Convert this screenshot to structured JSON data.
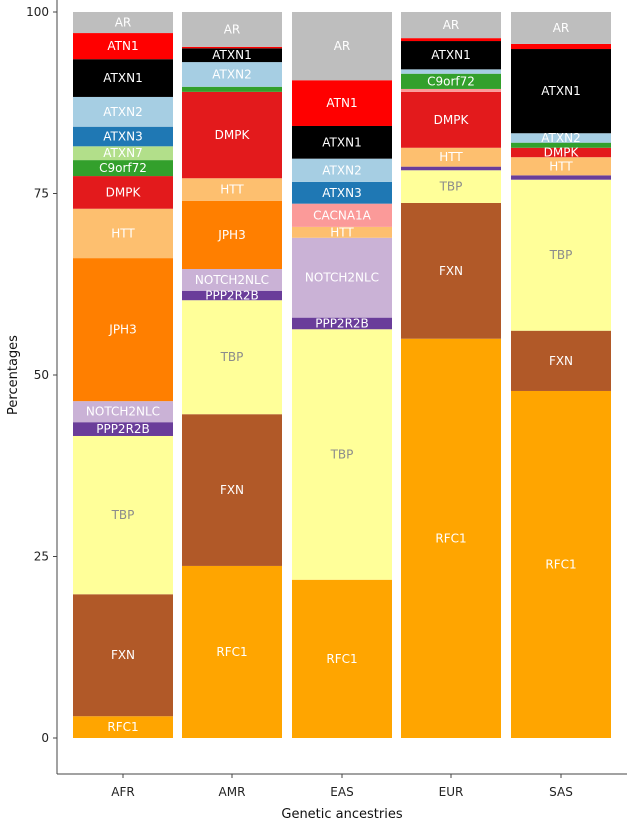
{
  "chart_data": {
    "type": "bar",
    "stacked": true,
    "title": "",
    "xlabel": "Genetic ancestries",
    "ylabel": "Percentages",
    "ylim": [
      0,
      100
    ],
    "yticks": [
      0,
      25,
      50,
      75,
      100
    ],
    "grid": false,
    "legend": "none (segments labeled inline)",
    "categories": [
      "AFR",
      "AMR",
      "EAS",
      "EUR",
      "SAS"
    ],
    "gene_colors": {
      "AR": "#bebebe",
      "ATN1": "#ff0000",
      "ATXN1": "#000000",
      "ATXN2": "#a6cee3",
      "ATXN3": "#1f78b4",
      "ATXN7": "#b2df8a",
      "C9orf72": "#33a02c",
      "CACNA1A": "#fb9a99",
      "DMPK": "#e31a1c",
      "HTT": "#fdbf6f",
      "JPH3": "#ff7f00",
      "NOTCH2NLC": "#cab2d6",
      "PPP2R2B": "#6a3d9a",
      "TBP": "#ffff99",
      "FXN": "#b15928",
      "RFC1": "#ffa500"
    },
    "label_colors": {
      "default": "#ffffff",
      "TBP": "#8c8c8c"
    },
    "bars": [
      {
        "category": "AFR",
        "segments": [
          {
            "gene": "RFC1",
            "value": 3.0,
            "labeled": true
          },
          {
            "gene": "FXN",
            "value": 16.8,
            "labeled": true
          },
          {
            "gene": "TBP",
            "value": 21.8,
            "labeled": true
          },
          {
            "gene": "PPP2R2B",
            "value": 1.9,
            "labeled": true
          },
          {
            "gene": "NOTCH2NLC",
            "value": 2.9,
            "labeled": true
          },
          {
            "gene": "JPH3",
            "value": 19.7,
            "labeled": true
          },
          {
            "gene": "HTT",
            "value": 6.8,
            "labeled": true
          },
          {
            "gene": "DMPK",
            "value": 4.5,
            "labeled": true
          },
          {
            "gene": "C9orf72",
            "value": 2.2,
            "labeled": true
          },
          {
            "gene": "ATXN7",
            "value": 1.9,
            "labeled": true
          },
          {
            "gene": "ATXN3",
            "value": 2.7,
            "labeled": true
          },
          {
            "gene": "ATXN2",
            "value": 4.1,
            "labeled": true
          },
          {
            "gene": "ATXN1",
            "value": 5.2,
            "labeled": true
          },
          {
            "gene": "ATN1",
            "value": 3.6,
            "labeled": true
          },
          {
            "gene": "AR",
            "value": 2.9,
            "labeled": true
          }
        ]
      },
      {
        "category": "AMR",
        "segments": [
          {
            "gene": "RFC1",
            "value": 23.7,
            "labeled": true
          },
          {
            "gene": "FXN",
            "value": 20.9,
            "labeled": true
          },
          {
            "gene": "TBP",
            "value": 15.7,
            "labeled": true
          },
          {
            "gene": "PPP2R2B",
            "value": 1.3,
            "labeled": true
          },
          {
            "gene": "NOTCH2NLC",
            "value": 3.0,
            "labeled": true
          },
          {
            "gene": "JPH3",
            "value": 9.4,
            "labeled": true
          },
          {
            "gene": "HTT",
            "value": 3.1,
            "labeled": true
          },
          {
            "gene": "DMPK",
            "value": 11.9,
            "labeled": true
          },
          {
            "gene": "C9orf72",
            "value": 0.7,
            "labeled": false
          },
          {
            "gene": "ATXN2",
            "value": 3.4,
            "labeled": true
          },
          {
            "gene": "ATXN1",
            "value": 1.9,
            "labeled": true
          },
          {
            "gene": "ATN1",
            "value": 0.2,
            "labeled": false
          },
          {
            "gene": "AR",
            "value": 4.8,
            "labeled": true
          }
        ]
      },
      {
        "category": "EAS",
        "segments": [
          {
            "gene": "RFC1",
            "value": 21.8,
            "labeled": true
          },
          {
            "gene": "TBP",
            "value": 34.5,
            "labeled": true
          },
          {
            "gene": "PPP2R2B",
            "value": 1.6,
            "labeled": true
          },
          {
            "gene": "NOTCH2NLC",
            "value": 11.0,
            "labeled": true
          },
          {
            "gene": "HTT",
            "value": 1.5,
            "labeled": true
          },
          {
            "gene": "CACNA1A",
            "value": 3.2,
            "labeled": true
          },
          {
            "gene": "ATXN3",
            "value": 3.0,
            "labeled": true
          },
          {
            "gene": "ATXN2",
            "value": 3.2,
            "labeled": true
          },
          {
            "gene": "ATXN1",
            "value": 4.5,
            "labeled": true
          },
          {
            "gene": "ATN1",
            "value": 6.3,
            "labeled": true
          },
          {
            "gene": "AR",
            "value": 9.4,
            "labeled": true
          }
        ]
      },
      {
        "category": "EUR",
        "segments": [
          {
            "gene": "RFC1",
            "value": 55.0,
            "labeled": true
          },
          {
            "gene": "FXN",
            "value": 18.7,
            "labeled": true
          },
          {
            "gene": "TBP",
            "value": 4.5,
            "labeled": true
          },
          {
            "gene": "PPP2R2B",
            "value": 0.5,
            "labeled": false
          },
          {
            "gene": "HTT",
            "value": 2.6,
            "labeled": true
          },
          {
            "gene": "DMPK",
            "value": 7.7,
            "labeled": true
          },
          {
            "gene": "CACNA1A",
            "value": 0.4,
            "labeled": false
          },
          {
            "gene": "C9orf72",
            "value": 2.1,
            "labeled": true
          },
          {
            "gene": "ATXN2",
            "value": 0.6,
            "labeled": false
          },
          {
            "gene": "ATXN1",
            "value": 3.9,
            "labeled": true
          },
          {
            "gene": "ATN1",
            "value": 0.4,
            "labeled": false
          },
          {
            "gene": "AR",
            "value": 3.6,
            "labeled": true
          }
        ]
      },
      {
        "category": "SAS",
        "segments": [
          {
            "gene": "RFC1",
            "value": 47.8,
            "labeled": true
          },
          {
            "gene": "FXN",
            "value": 8.3,
            "labeled": true
          },
          {
            "gene": "TBP",
            "value": 20.8,
            "labeled": true
          },
          {
            "gene": "PPP2R2B",
            "value": 0.6,
            "labeled": false
          },
          {
            "gene": "HTT",
            "value": 2.5,
            "labeled": true
          },
          {
            "gene": "DMPK",
            "value": 1.3,
            "labeled": true
          },
          {
            "gene": "C9orf72",
            "value": 0.7,
            "labeled": false
          },
          {
            "gene": "ATXN2",
            "value": 1.3,
            "labeled": true
          },
          {
            "gene": "ATXN1",
            "value": 11.6,
            "labeled": true
          },
          {
            "gene": "ATN1",
            "value": 0.7,
            "labeled": false
          },
          {
            "gene": "AR",
            "value": 4.4,
            "labeled": true
          }
        ]
      }
    ]
  }
}
